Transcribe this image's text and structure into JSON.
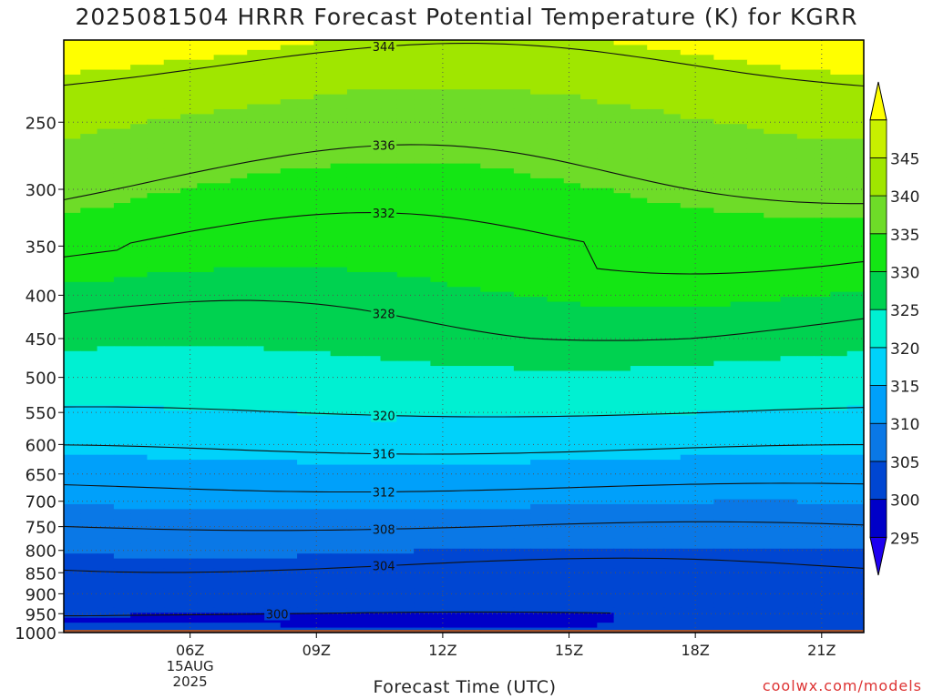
{
  "chart_data": {
    "type": "heatmap",
    "title": "2025081504 HRRR Forecast Potential Temperature (K) for KGRR",
    "xlabel": "Forecast Time (UTC)",
    "ylabel": "",
    "x_ticks": [
      "06Z",
      "09Z",
      "12Z",
      "15Z",
      "18Z",
      "21Z"
    ],
    "x_date_label": [
      "15AUG",
      "2025"
    ],
    "x_range": [
      "03Z",
      "22Z"
    ],
    "y_ticks": [
      250,
      300,
      350,
      400,
      450,
      500,
      550,
      600,
      650,
      700,
      750,
      800,
      850,
      900,
      950,
      1000
    ],
    "y_range_hPa": [
      200,
      1000
    ],
    "colorbar": {
      "labels": [
        295,
        300,
        305,
        310,
        315,
        320,
        325,
        330,
        335,
        340,
        345
      ],
      "colors": [
        "#1e00f0",
        "#0000c8",
        "#0046d2",
        "#0a78e6",
        "#00a0fa",
        "#00d2fa",
        "#00f0d2",
        "#00d250",
        "#14e614",
        "#6edc28",
        "#a0e600",
        "#c8f000",
        "#ffff00"
      ],
      "extends": "both"
    },
    "contours": [
      {
        "label": "300",
        "theta": 300
      },
      {
        "label": "304",
        "theta": 304
      },
      {
        "label": "308",
        "theta": 308
      },
      {
        "label": "312",
        "theta": 312
      },
      {
        "label": "316",
        "theta": 316
      },
      {
        "label": "320",
        "theta": 320
      },
      {
        "label": "328",
        "theta": 328
      },
      {
        "label": "332",
        "theta": 332
      },
      {
        "label": "336",
        "theta": 336
      },
      {
        "label": "344",
        "theta": 344
      }
    ],
    "theta_profile_hPa": [
      [
        200,
        347
      ],
      [
        225,
        343
      ],
      [
        250,
        340
      ],
      [
        300,
        336
      ],
      [
        350,
        332.5
      ],
      [
        400,
        329.5
      ],
      [
        450,
        327
      ],
      [
        500,
        323
      ],
      [
        550,
        320
      ],
      [
        600,
        316.5
      ],
      [
        650,
        313.5
      ],
      [
        700,
        310.5
      ],
      [
        750,
        308
      ],
      [
        800,
        305
      ],
      [
        850,
        303.5
      ],
      [
        900,
        303
      ],
      [
        950,
        302
      ],
      [
        975,
        300.5
      ],
      [
        1000,
        302
      ]
    ],
    "grid": true,
    "legend": "right"
  },
  "credit": "coolwx.com/models"
}
